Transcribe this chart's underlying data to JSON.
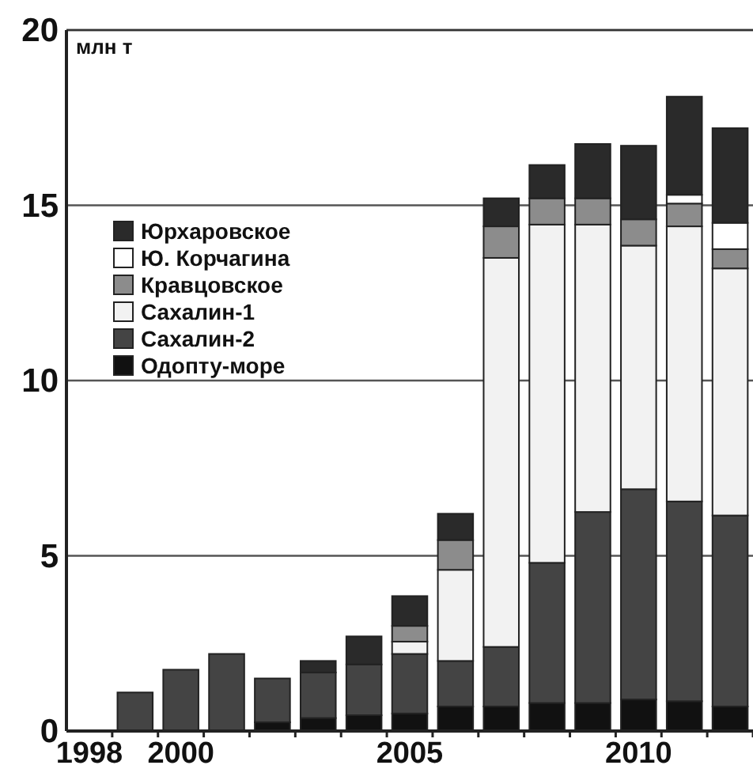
{
  "chart_data": {
    "type": "bar",
    "stacked": true,
    "ylabel": "млн т",
    "categories": [
      "1998",
      null,
      "2000",
      null,
      null,
      null,
      null,
      "2005",
      null,
      null,
      null,
      null,
      "2010",
      null,
      null
    ],
    "ylim": [
      0,
      20
    ],
    "yticks": [
      0,
      5,
      10,
      15,
      20
    ],
    "grid": "y",
    "legend": "top left",
    "series": [
      {
        "name": "Одопту-море",
        "color": "#111111",
        "values": [
          null,
          null,
          null,
          null,
          0.25,
          0.37,
          0.45,
          0.5,
          0.7,
          0.7,
          0.8,
          0.8,
          0.9,
          0.85,
          0.7
        ]
      },
      {
        "name": "Сахалин-2",
        "color": "#444444",
        "values": [
          null,
          1.1,
          1.75,
          2.2,
          1.25,
          1.3,
          1.45,
          1.7,
          1.3,
          1.7,
          4.0,
          5.45,
          6.0,
          5.7,
          5.45
        ]
      },
      {
        "name": "Сахалин-1",
        "color": "#f2f2f2",
        "values": [
          null,
          null,
          null,
          null,
          null,
          null,
          null,
          0.35,
          2.6,
          11.1,
          9.65,
          8.2,
          6.95,
          7.85,
          7.05
        ]
      },
      {
        "name": "Кравцовское",
        "color": "#8c8c8c",
        "values": [
          null,
          null,
          null,
          null,
          null,
          null,
          null,
          0.45,
          0.85,
          0.9,
          0.75,
          0.75,
          0.75,
          0.65,
          0.55
        ]
      },
      {
        "name": "Ю. Корчагина",
        "color": "#ffffff",
        "values": [
          null,
          null,
          null,
          null,
          null,
          null,
          null,
          null,
          null,
          null,
          null,
          null,
          null,
          0.25,
          0.75
        ]
      },
      {
        "name": "Юрхаровское",
        "color": "#2a2a2a",
        "values": [
          null,
          null,
          null,
          null,
          null,
          0.33,
          0.8,
          0.85,
          0.75,
          0.8,
          0.95,
          1.55,
          2.1,
          2.8,
          2.7
        ]
      }
    ]
  }
}
